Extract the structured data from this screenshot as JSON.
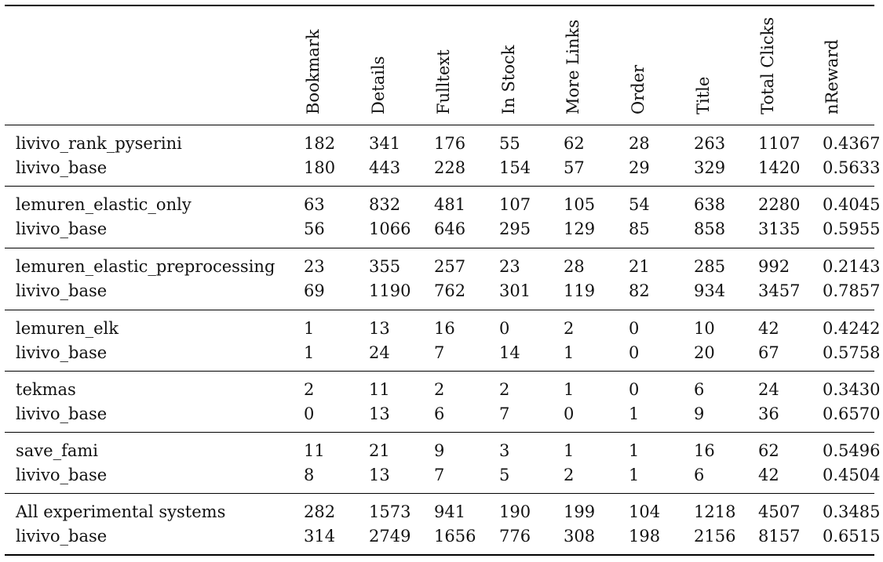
{
  "columns": [
    "Bookmark",
    "Details",
    "Fulltext",
    "In Stock",
    "More Links",
    "Order",
    "Title",
    "Total Clicks",
    "nReward"
  ],
  "groups": [
    {
      "rows": [
        {
          "system": "livivo_rank_pyserini",
          "values": [
            "182",
            "341",
            "176",
            "55",
            "62",
            "28",
            "263",
            "1107",
            "0.4367"
          ]
        },
        {
          "system": "livivo_base",
          "values": [
            "180",
            "443",
            "228",
            "154",
            "57",
            "29",
            "329",
            "1420",
            "0.5633"
          ]
        }
      ]
    },
    {
      "rows": [
        {
          "system": "lemuren_elastic_only",
          "values": [
            "63",
            "832",
            "481",
            "107",
            "105",
            "54",
            "638",
            "2280",
            "0.4045"
          ]
        },
        {
          "system": "livivo_base",
          "values": [
            "56",
            "1066",
            "646",
            "295",
            "129",
            "85",
            "858",
            "3135",
            "0.5955"
          ]
        }
      ]
    },
    {
      "rows": [
        {
          "system": "lemuren_elastic_preprocessing",
          "values": [
            "23",
            "355",
            "257",
            "23",
            "28",
            "21",
            "285",
            "992",
            "0.2143"
          ]
        },
        {
          "system": "livivo_base",
          "values": [
            "69",
            "1190",
            "762",
            "301",
            "119",
            "82",
            "934",
            "3457",
            "0.7857"
          ]
        }
      ]
    },
    {
      "rows": [
        {
          "system": "lemuren_elk",
          "values": [
            "1",
            "13",
            "16",
            "0",
            "2",
            "0",
            "10",
            "42",
            "0.4242"
          ]
        },
        {
          "system": "livivo_base",
          "values": [
            "1",
            "24",
            "7",
            "14",
            "1",
            "0",
            "20",
            "67",
            "0.5758"
          ]
        }
      ]
    },
    {
      "rows": [
        {
          "system": "tekmas",
          "values": [
            "2",
            "11",
            "2",
            "2",
            "1",
            "0",
            "6",
            "24",
            "0.3430"
          ]
        },
        {
          "system": "livivo_base",
          "values": [
            "0",
            "13",
            "6",
            "7",
            "0",
            "1",
            "9",
            "36",
            "0.6570"
          ]
        }
      ]
    },
    {
      "rows": [
        {
          "system": "save_fami",
          "values": [
            "11",
            "21",
            "9",
            "3",
            "1",
            "1",
            "16",
            "62",
            "0.5496"
          ]
        },
        {
          "system": "livivo_base",
          "values": [
            "8",
            "13",
            "7",
            "5",
            "2",
            "1",
            "6",
            "42",
            "0.4504"
          ]
        }
      ]
    },
    {
      "rows": [
        {
          "system": "All experimental systems",
          "values": [
            "282",
            "1573",
            "941",
            "190",
            "199",
            "104",
            "1218",
            "4507",
            "0.3485"
          ]
        },
        {
          "system": "livivo_base",
          "values": [
            "314",
            "2749",
            "1656",
            "776",
            "308",
            "198",
            "2156",
            "8157",
            "0.6515"
          ]
        }
      ]
    }
  ]
}
